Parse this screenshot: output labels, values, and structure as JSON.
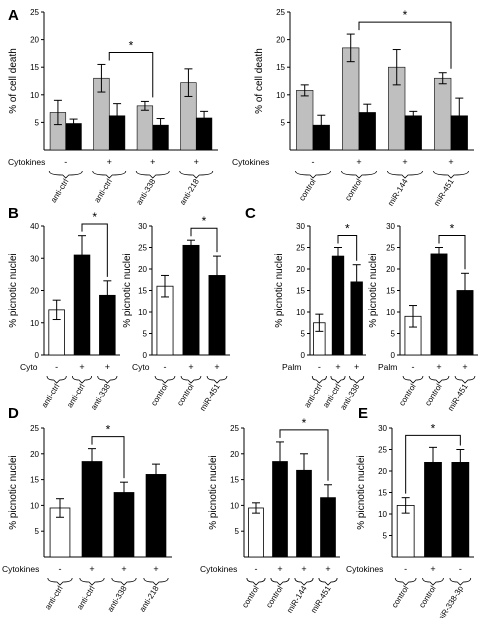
{
  "panel_labels": [
    "A",
    "B",
    "C",
    "D",
    "E"
  ],
  "chart_data": [
    {
      "id": "A1",
      "panel": "A",
      "type": "bar",
      "ylabel": "% of cell death",
      "ylim": [
        0,
        25
      ],
      "yticks": [
        5,
        10,
        15,
        20,
        25
      ],
      "treatment_label": "Cytokines",
      "signs": [
        "-",
        "+",
        "+",
        "+"
      ],
      "categories": [
        "anti-ctrl",
        "anti-ctrl",
        "anti-338",
        "anti-218"
      ],
      "series": [
        {
          "color": "#bfbfbf",
          "values": [
            6.8,
            13.0,
            8.0,
            12.2
          ],
          "errors": [
            2.2,
            2.5,
            0.8,
            2.5
          ]
        },
        {
          "color": "#000000",
          "values": [
            4.8,
            6.2,
            4.5,
            5.8
          ],
          "errors": [
            0.8,
            2.2,
            1.2,
            1.2
          ]
        }
      ],
      "significance": [
        {
          "from": 1,
          "to": 2,
          "label": "*"
        }
      ]
    },
    {
      "id": "A2",
      "panel": "A",
      "type": "bar",
      "ylabel": "% of cell death",
      "ylim": [
        0,
        25
      ],
      "yticks": [
        5,
        10,
        15,
        20,
        25
      ],
      "treatment_label": "Cytokines",
      "signs": [
        "-",
        "+",
        "+",
        "+"
      ],
      "categories": [
        "control",
        "control",
        "miR-144",
        "miR-451"
      ],
      "series": [
        {
          "color": "#bfbfbf",
          "values": [
            10.8,
            18.5,
            15.0,
            13.0
          ],
          "errors": [
            1.0,
            2.5,
            3.2,
            1.0
          ]
        },
        {
          "color": "#000000",
          "values": [
            4.5,
            6.8,
            6.2,
            6.2
          ],
          "errors": [
            1.8,
            1.5,
            0.8,
            3.2
          ]
        }
      ],
      "significance": [
        {
          "from": 1,
          "to": 3,
          "label": "*"
        }
      ]
    },
    {
      "id": "B1",
      "panel": "B",
      "type": "bar",
      "ylabel": "% picnotic nuclei",
      "ylim": [
        0,
        40
      ],
      "yticks": [
        0,
        10,
        20,
        30,
        40
      ],
      "treatment_label": "Cyto",
      "signs": [
        "-",
        "+",
        "+"
      ],
      "categories": [
        "anti-ctrl",
        "anti-ctrl",
        "anti-338"
      ],
      "series": [
        {
          "values": [
            14.0,
            31.0,
            18.5
          ],
          "errors": [
            3.0,
            6.0,
            4.5
          ],
          "colors": [
            "#ffffff",
            "#000000",
            "#000000"
          ]
        }
      ],
      "significance": [
        {
          "from": 1,
          "to": 2,
          "label": "*"
        }
      ]
    },
    {
      "id": "B2",
      "panel": "B",
      "type": "bar",
      "ylabel": "% picnotic nuclei",
      "ylim": [
        0,
        30
      ],
      "yticks": [
        0,
        5,
        10,
        15,
        20,
        25,
        30
      ],
      "treatment_label": "Cyto",
      "signs": [
        "-",
        "+",
        "+"
      ],
      "categories": [
        "control",
        "control",
        "miR-451"
      ],
      "series": [
        {
          "values": [
            16.0,
            25.5,
            18.5
          ],
          "errors": [
            2.5,
            1.2,
            4.5
          ],
          "colors": [
            "#ffffff",
            "#000000",
            "#000000"
          ]
        }
      ],
      "significance": [
        {
          "from": 1,
          "to": 2,
          "label": "*"
        }
      ]
    },
    {
      "id": "C1",
      "panel": "C",
      "type": "bar",
      "ylabel": "% picnotic nuclei",
      "ylim": [
        0,
        30
      ],
      "yticks": [
        0,
        5,
        10,
        15,
        20,
        25,
        30
      ],
      "treatment_label": "Palm",
      "signs": [
        "-",
        "+",
        "+"
      ],
      "categories": [
        "anti-ctrl",
        "anti-ctrl",
        "anti-338"
      ],
      "series": [
        {
          "values": [
            7.5,
            23.0,
            17.0
          ],
          "errors": [
            2.0,
            2.0,
            4.0
          ],
          "colors": [
            "#ffffff",
            "#000000",
            "#000000"
          ]
        }
      ],
      "significance": [
        {
          "from": 1,
          "to": 2,
          "label": "*"
        }
      ]
    },
    {
      "id": "C2",
      "panel": "C",
      "type": "bar",
      "ylabel": "% picnotic nuclei",
      "ylim": [
        0,
        30
      ],
      "yticks": [
        0,
        5,
        10,
        15,
        20,
        25,
        30
      ],
      "treatment_label": "Palm",
      "signs": [
        "-",
        "+",
        "+"
      ],
      "categories": [
        "control",
        "control",
        "miR-451"
      ],
      "series": [
        {
          "values": [
            9.0,
            23.5,
            15.0
          ],
          "errors": [
            2.5,
            1.5,
            4.0
          ],
          "colors": [
            "#ffffff",
            "#000000",
            "#000000"
          ]
        }
      ],
      "significance": [
        {
          "from": 1,
          "to": 2,
          "label": "*"
        }
      ]
    },
    {
      "id": "D1",
      "panel": "D",
      "type": "bar",
      "ylabel": "% picnotic nuclei",
      "ylim": [
        0,
        25
      ],
      "yticks": [
        5,
        10,
        15,
        20,
        25
      ],
      "treatment_label": "Cytokines",
      "signs": [
        "-",
        "+",
        "+",
        "+"
      ],
      "categories": [
        "anti-ctrl",
        "anti-ctrl",
        "anti-338",
        "anti-218"
      ],
      "series": [
        {
          "values": [
            9.5,
            18.5,
            12.5,
            16.0
          ],
          "errors": [
            1.8,
            2.5,
            2.0,
            2.0
          ],
          "colors": [
            "#ffffff",
            "#000000",
            "#000000",
            "#000000"
          ]
        }
      ],
      "significance": [
        {
          "from": 1,
          "to": 2,
          "label": "*"
        }
      ]
    },
    {
      "id": "D2",
      "panel": "D",
      "type": "bar",
      "ylabel": "% picnotic nuclei",
      "ylim": [
        0,
        25
      ],
      "yticks": [
        5,
        10,
        15,
        20,
        25
      ],
      "treatment_label": "Cytokines",
      "signs": [
        "-",
        "+",
        "+",
        "+"
      ],
      "categories": [
        "control",
        "control",
        "miR-144",
        "miR-451"
      ],
      "series": [
        {
          "values": [
            9.5,
            18.5,
            16.8,
            11.5
          ],
          "errors": [
            1.0,
            3.8,
            3.2,
            2.5
          ],
          "colors": [
            "#ffffff",
            "#000000",
            "#000000",
            "#000000"
          ]
        }
      ],
      "significance": [
        {
          "from": 1,
          "to": 3,
          "label": "*"
        }
      ]
    },
    {
      "id": "E",
      "panel": "E",
      "type": "bar",
      "ylabel": "% picnotic nuclei",
      "ylim": [
        0,
        30
      ],
      "yticks": [
        5,
        10,
        15,
        20,
        25,
        30
      ],
      "treatment_label": "Cytokines",
      "signs": [
        "-",
        "+",
        "-"
      ],
      "categories": [
        "control",
        "control",
        "miR-338-3p"
      ],
      "series": [
        {
          "values": [
            12.0,
            22.0,
            22.0
          ],
          "errors": [
            1.8,
            3.5,
            3.0
          ],
          "colors": [
            "#ffffff",
            "#000000",
            "#000000"
          ]
        }
      ],
      "significance": [
        {
          "from": 0,
          "to": 2,
          "label": "*"
        }
      ]
    }
  ]
}
